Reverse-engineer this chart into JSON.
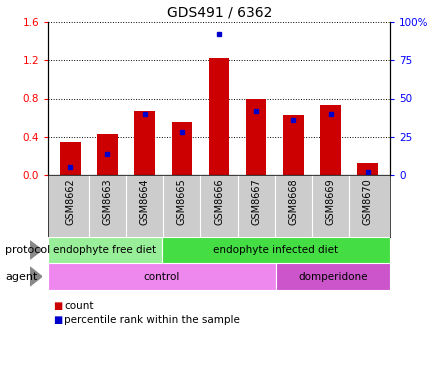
{
  "title": "GDS491 / 6362",
  "samples": [
    "GSM8662",
    "GSM8663",
    "GSM8664",
    "GSM8665",
    "GSM8666",
    "GSM8667",
    "GSM8668",
    "GSM8669",
    "GSM8670"
  ],
  "count_values": [
    0.35,
    0.43,
    0.67,
    0.55,
    1.22,
    0.79,
    0.63,
    0.73,
    0.13
  ],
  "percentile_values": [
    5,
    14,
    40,
    28,
    92,
    42,
    36,
    40,
    2
  ],
  "ylim_left": [
    0,
    1.6
  ],
  "ylim_right": [
    0,
    100
  ],
  "yticks_left": [
    0,
    0.4,
    0.8,
    1.2,
    1.6
  ],
  "yticks_right": [
    0,
    25,
    50,
    75,
    100
  ],
  "bar_color": "#cc0000",
  "percentile_color": "#0000cc",
  "bar_width": 0.55,
  "protocol_groups": [
    {
      "label": "endophyte free diet",
      "start": 0,
      "end": 3,
      "color": "#99ee99"
    },
    {
      "label": "endophyte infected diet",
      "start": 3,
      "end": 9,
      "color": "#44dd44"
    }
  ],
  "agent_groups": [
    {
      "label": "control",
      "start": 0,
      "end": 6,
      "color": "#ee88ee"
    },
    {
      "label": "domperidone",
      "start": 6,
      "end": 9,
      "color": "#cc55cc"
    }
  ],
  "protocol_label": "protocol",
  "agent_label": "agent",
  "legend_count_label": "count",
  "legend_percentile_label": "percentile rank within the sample",
  "tick_bg_color": "#cccccc",
  "arrow_color": "#888888"
}
